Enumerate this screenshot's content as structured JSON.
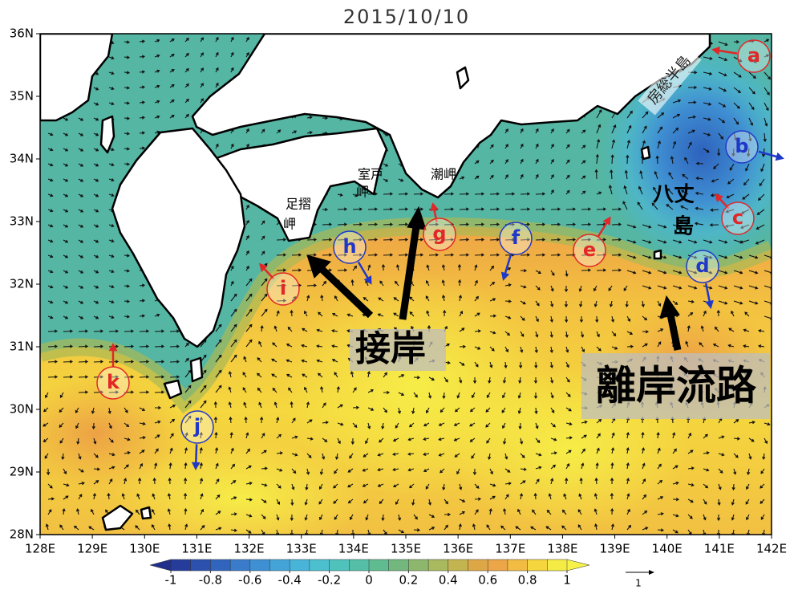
{
  "title": "2015/10/10",
  "map": {
    "xlim": [
      128,
      142
    ],
    "ylim": [
      28,
      36
    ],
    "xticks": [
      {
        "value": 128,
        "label": "128E"
      },
      {
        "value": 129,
        "label": "129E"
      },
      {
        "value": 130,
        "label": "130E"
      },
      {
        "value": 131,
        "label": "131E"
      },
      {
        "value": 132,
        "label": "132E"
      },
      {
        "value": 133,
        "label": "133E"
      },
      {
        "value": 134,
        "label": "134E"
      },
      {
        "value": 135,
        "label": "135E"
      },
      {
        "value": 136,
        "label": "136E"
      },
      {
        "value": 137,
        "label": "137E"
      },
      {
        "value": 138,
        "label": "138E"
      },
      {
        "value": 139,
        "label": "139E"
      },
      {
        "value": 140,
        "label": "140E"
      },
      {
        "value": 141,
        "label": "141E"
      },
      {
        "value": 142,
        "label": "142E"
      }
    ],
    "yticks": [
      {
        "value": 28,
        "label": "28N"
      },
      {
        "value": 29,
        "label": "29N"
      },
      {
        "value": 30,
        "label": "30N"
      },
      {
        "value": 31,
        "label": "31N"
      },
      {
        "value": 32,
        "label": "32N"
      },
      {
        "value": 33,
        "label": "33N"
      },
      {
        "value": 34,
        "label": "34N"
      },
      {
        "value": 35,
        "label": "35N"
      },
      {
        "value": 36,
        "label": "36N"
      }
    ],
    "colorbar": {
      "lim": [
        -1,
        1
      ],
      "ticks": [
        -1,
        -0.8,
        -0.6,
        -0.4,
        -0.2,
        0,
        0.2,
        0.4,
        0.6,
        0.8,
        1
      ]
    },
    "reference_vector": 1
  },
  "markers": [
    {
      "label": "a",
      "color": "#e02828"
    },
    {
      "label": "b",
      "color": "#2038c8"
    },
    {
      "label": "c",
      "color": "#e02828"
    },
    {
      "label": "d",
      "color": "#2038c8"
    },
    {
      "label": "e",
      "color": "#e02828"
    },
    {
      "label": "f",
      "color": "#2038c8"
    },
    {
      "label": "g",
      "color": "#e02828"
    },
    {
      "label": "h",
      "color": "#2038c8"
    },
    {
      "label": "i",
      "color": "#e02828"
    },
    {
      "label": "j",
      "color": "#2038c8"
    },
    {
      "label": "k",
      "color": "#e02828"
    }
  ],
  "places": {
    "boso": "房総半島",
    "hachijo_1": "八丈",
    "hachijo_2": "島",
    "muroto_1": "室戸",
    "muroto_2": "岬",
    "ashizuri_1": "足摺",
    "ashizuri_2": "岬",
    "shiono": "潮岬"
  },
  "annotations": {
    "nearshore": "接岸",
    "offshore": "離岸流路"
  }
}
